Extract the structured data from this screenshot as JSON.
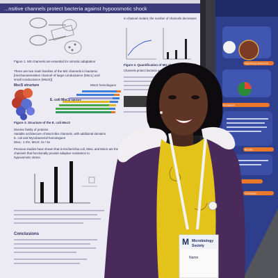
{
  "photo": {
    "subject": "woman-at-poster-session",
    "colors": {
      "poster_bg": "#eceaf2",
      "right_poster_bg": "#2d3f8c",
      "jacket": "#4a2a5a",
      "top": "#e3c21a",
      "lanyard": "#f2f2f2",
      "fur_trim": "#f0eef0",
      "dark_bg": "#1b1b22"
    }
  },
  "poster_left": {
    "header_banner": "...nsitive channels protect bacteria against hypoosmotic shock",
    "col1": {
      "diagram_caption": "Figure 1. MS channels are essential for osmotic adaptation",
      "para1": "There are two main families of the MS channels in bacteria: [mechanosensitive channel of large conductance (MscL) and small conductance (MscS)]",
      "mscs_label": "MscS structure",
      "ecoli_label": "E. coli MscS family",
      "legend_title": "MscS homologues",
      "fig3_caption": "Figure 3. Structure of the E. coli MscS",
      "bullets": [
        "Diverse family of proteins",
        "Variable architecture of MscS-like channels, with additional domains",
        "E. coli and Mycobacterial homologues",
        "MscL: 1-2%; MscS: 2x / 5x"
      ],
      "para2": "Previous studies have shown that in Escherichia coli, MscL and MscS are the key channels that functionally provide adaptive resistance to hypoosmotic stress.",
      "conclusions_title": "Conclusions"
    },
    "col2": {
      "intro": "In channel mutant, the number of channels decreases",
      "section_title": "Figure 2. Quantification of MS channels in the cell",
      "para": "Channels protect bacteria against hypoosmotic shock"
    }
  },
  "poster_right": {
    "bubbles": [
      "Hypothesis statement...",
      "Mechanism",
      "Results",
      "Interventions",
      "Conclusion"
    ]
  },
  "badge": {
    "logo": "M",
    "line1": "Microbiology",
    "line2": "Society",
    "name": "Name"
  }
}
